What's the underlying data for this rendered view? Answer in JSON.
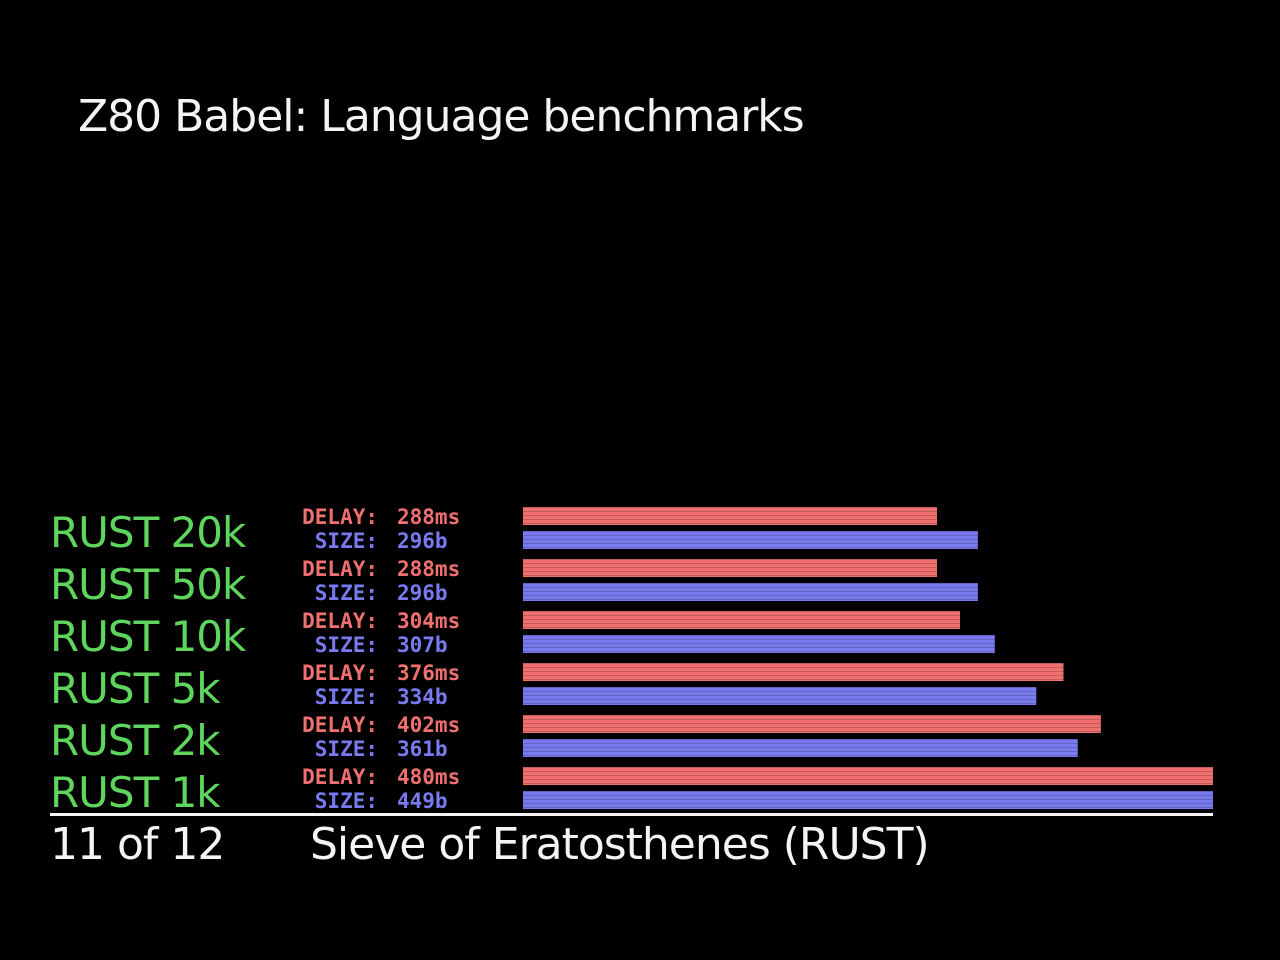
{
  "header": {
    "title": "Z80 Babel: Language benchmarks"
  },
  "footer": {
    "page": "11 of 12",
    "caption": "Sieve of Eratosthenes (RUST)"
  },
  "chart_data": {
    "type": "bar",
    "orientation": "horizontal",
    "title": "Z80 Babel: Language benchmarks",
    "subtitle": "Sieve of Eratosthenes (RUST)",
    "categories": [
      "RUST 20k",
      "RUST 50k",
      "RUST 10k",
      "RUST 5k",
      "RUST 2k",
      "RUST 1k"
    ],
    "series": [
      {
        "name": "DELAY:",
        "unit": "ms",
        "color": "#f07070",
        "values": [
          288,
          288,
          304,
          376,
          402,
          480
        ],
        "value_labels": [
          "288ms",
          "288ms",
          "304ms",
          "376ms",
          "402ms",
          "480ms"
        ]
      },
      {
        "name": "SIZE:",
        "unit": "b",
        "color": "#7a7af0",
        "values": [
          296,
          296,
          307,
          334,
          361,
          449
        ],
        "value_labels": [
          "296b",
          "296b",
          "307b",
          "334b",
          "361b",
          "449b"
        ]
      }
    ],
    "label_color": "#5ed65e",
    "grid": false
  }
}
